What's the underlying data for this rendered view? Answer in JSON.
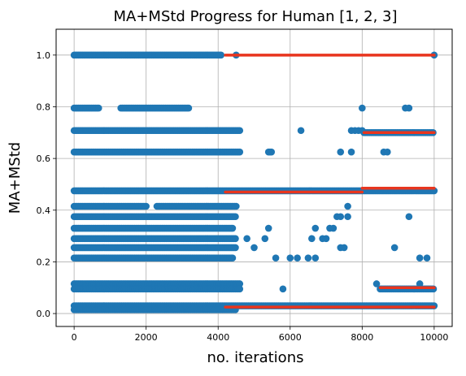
{
  "chart_data": {
    "type": "scatter",
    "title": "MA+MStd Progress for Human [1, 2, 3]",
    "xlabel": "no. iterations",
    "ylabel": "MA+MStd",
    "xlim": [
      -500,
      10500
    ],
    "ylim": [
      -0.05,
      1.1
    ],
    "xticks": [
      0,
      2000,
      4000,
      6000,
      8000,
      10000
    ],
    "yticks": [
      0.0,
      0.2,
      0.4,
      0.6,
      0.8,
      1.0
    ],
    "xtick_labels": [
      "0",
      "2000",
      "4000",
      "6000",
      "8000",
      "10000"
    ],
    "ytick_labels": [
      "0.0",
      "0.2",
      "0.4",
      "0.6",
      "0.8",
      "1.0"
    ],
    "grid": true,
    "colors": {
      "scatter": "#1f77b4",
      "line": "#e8351e",
      "grid": "#b0b0b0"
    },
    "scatter_levels": [
      {
        "y": 1.0,
        "x_ranges": [
          [
            0,
            4100
          ]
        ],
        "x_points": [
          4500,
          10000
        ]
      },
      {
        "y": 0.795,
        "x_ranges": [
          [
            0,
            700
          ],
          [
            1300,
            3200
          ]
        ],
        "x_points": [
          8000,
          9200,
          9300
        ]
      },
      {
        "y": 0.708,
        "x_ranges": [
          [
            0,
            4600
          ]
        ],
        "x_points": [
          6300,
          7700,
          7800,
          7900,
          8000
        ]
      },
      {
        "y": 0.7,
        "x_ranges": [
          [
            8050,
            10000
          ]
        ],
        "x_points": []
      },
      {
        "y": 0.625,
        "x_ranges": [
          [
            0,
            4600
          ],
          [
            5400,
            5500
          ]
        ],
        "x_points": [
          7400,
          7700,
          8600,
          8700
        ]
      },
      {
        "y": 0.475,
        "x_ranges": [
          [
            0,
            10000
          ]
        ],
        "x_points": []
      },
      {
        "y": 0.415,
        "x_ranges": [
          [
            0,
            2000
          ],
          [
            2300,
            4500
          ]
        ],
        "x_points": [
          7600
        ]
      },
      {
        "y": 0.375,
        "x_ranges": [
          [
            0,
            4500
          ]
        ],
        "x_points": [
          7300,
          7400,
          7600,
          9300
        ]
      },
      {
        "y": 0.33,
        "x_ranges": [
          [
            0,
            4400
          ]
        ],
        "x_points": [
          5400,
          6700,
          7100,
          7200
        ]
      },
      {
        "y": 0.29,
        "x_ranges": [
          [
            0,
            4500
          ]
        ],
        "x_points": [
          4800,
          5300,
          6600,
          6900,
          7000
        ]
      },
      {
        "y": 0.255,
        "x_ranges": [
          [
            0,
            4500
          ]
        ],
        "x_points": [
          5000,
          7400,
          7500,
          8900
        ]
      },
      {
        "y": 0.215,
        "x_ranges": [
          [
            0,
            4400
          ]
        ],
        "x_points": [
          5600,
          6000,
          6200,
          6500,
          6700,
          9600,
          9800
        ]
      },
      {
        "y": 0.115,
        "x_ranges": [
          [
            0,
            4600
          ]
        ],
        "x_points": [
          8400,
          9600
        ]
      },
      {
        "y": 0.095,
        "x_ranges": [
          [
            0,
            4600
          ],
          [
            8500,
            10000
          ]
        ],
        "x_points": [
          5800
        ]
      },
      {
        "y": 0.03,
        "x_ranges": [
          [
            0,
            10000
          ]
        ],
        "x_points": []
      },
      {
        "y": 0.015,
        "x_ranges": [
          [
            0,
            4500
          ]
        ],
        "x_points": []
      }
    ],
    "line_segments": [
      {
        "x": [
          4200,
          10000
        ],
        "y": [
          1.0,
          1.0
        ]
      },
      {
        "x": [
          8050,
          10000
        ],
        "y": [
          0.7,
          0.7
        ]
      },
      {
        "x": [
          4200,
          8000
        ],
        "y": [
          0.47,
          0.47
        ]
      },
      {
        "x": [
          8000,
          10000
        ],
        "y": [
          0.485,
          0.485
        ]
      },
      {
        "x": [
          8500,
          10000
        ],
        "y": [
          0.1,
          0.1
        ]
      },
      {
        "x": [
          4200,
          10000
        ],
        "y": [
          0.025,
          0.025
        ]
      }
    ]
  }
}
